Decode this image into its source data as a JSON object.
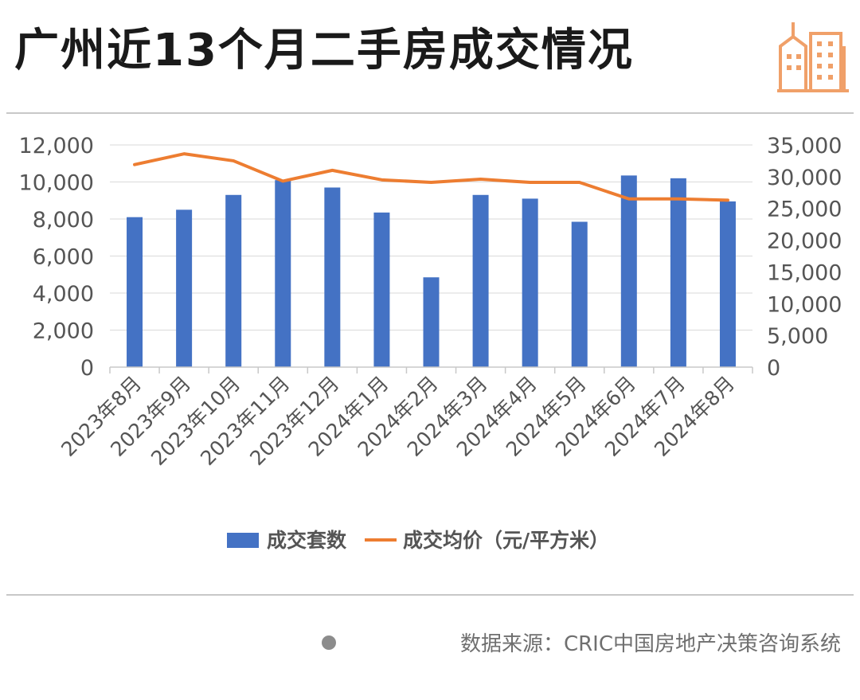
{
  "header": {
    "title": "广州近13个月二手房成交情况"
  },
  "source": {
    "text": "数据来源：CRIC中国房地产决策咨询系统"
  },
  "chart_data": {
    "type": "bar",
    "categories": [
      "2023年8月",
      "2023年9月",
      "2023年10月",
      "2023年11月",
      "2023年12月",
      "2024年1月",
      "2024年2月",
      "2024年3月",
      "2024年4月",
      "2024年5月",
      "2024年6月",
      "2024年7月",
      "2024年8月"
    ],
    "series": [
      {
        "name": "成交套数",
        "type": "bar",
        "axis": "left",
        "color": "#4472c4",
        "values": [
          8100,
          8500,
          9300,
          10100,
          9700,
          8350,
          4850,
          9300,
          9100,
          7850,
          10350,
          10200,
          8950
        ]
      },
      {
        "name": "成交均价（元/平方米）",
        "type": "line",
        "axis": "right",
        "color": "#ed7d31",
        "values": [
          31900,
          33600,
          32500,
          29300,
          31000,
          29500,
          29100,
          29600,
          29100,
          29100,
          26500,
          26500,
          26300
        ]
      }
    ],
    "y_left": {
      "min": 0,
      "max": 12000,
      "ticks": [
        "0",
        "2,000",
        "4,000",
        "6,000",
        "8,000",
        "10,000",
        "12,000"
      ]
    },
    "y_right": {
      "min": 0,
      "max": 35000,
      "ticks": [
        "0",
        "5,000",
        "10,000",
        "15,000",
        "20,000",
        "25,000",
        "30,000",
        "35,000"
      ]
    },
    "grid": true,
    "legend_position": "bottom"
  }
}
